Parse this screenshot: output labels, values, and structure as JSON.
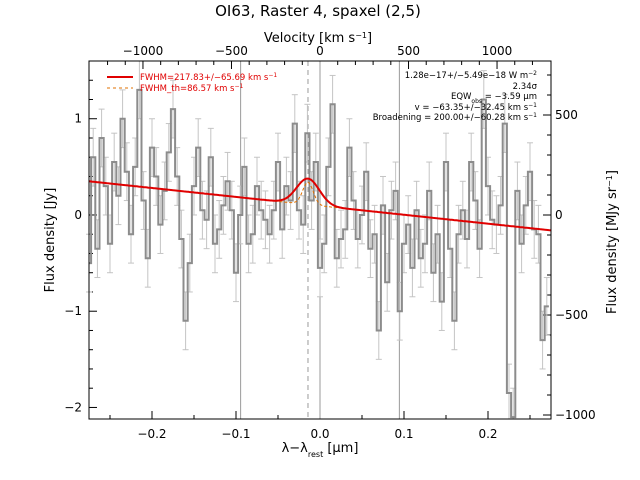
{
  "chart_data": {
    "type": "line",
    "title": "OI63, Raster 4, spaxel (2,5)",
    "xlabel_parts": {
      "main": "λ−λ",
      "sub": "rest",
      "unit": " [μm]"
    },
    "ylabel": "Flux density [Jy]",
    "top_axis": {
      "label_parts": {
        "main": "Velocity [km s",
        "sup": "−1",
        "end": "]"
      },
      "ticks": [
        "−1000",
        "−500",
        "0",
        "500",
        "1000"
      ],
      "tick_values": [
        -1000,
        -500,
        0,
        500,
        1000
      ]
    },
    "right_axis": {
      "label_parts": {
        "main": "Flux density [MJy sr",
        "sup": "−1",
        "end": "]"
      },
      "ticks": [
        "−1000",
        "−500",
        "0",
        "500"
      ],
      "tick_values": [
        -1000,
        -500,
        0,
        500
      ]
    },
    "xlim": [
      -0.275,
      0.275
    ],
    "ylim": [
      -2.12,
      1.6
    ],
    "right_ylim": [
      -1020,
      770
    ],
    "x_ticks": [
      "−0.2",
      "−0.1",
      "0.0",
      "0.1",
      "0.2"
    ],
    "x_tick_values": [
      -0.2,
      -0.1,
      0.0,
      0.1,
      0.2
    ],
    "y_ticks": [
      "−2",
      "−1",
      "0",
      "1"
    ],
    "y_tick_values": [
      -2,
      -1,
      0,
      1
    ],
    "vertical_lines": [
      -0.0945,
      0.0945
    ],
    "dashed_line": -0.0143,
    "zero_line": 0.0,
    "legend": {
      "fit": {
        "main": "FWHM=217.83+/−65.69 km s",
        "sup": "−1"
      },
      "instrument": {
        "main": "FWHM_th=86.57 km s",
        "sup": "−1"
      }
    },
    "annotations": {
      "line1": {
        "main": "1.28e−17+/−5.49e−18 W m",
        "sup": "−2"
      },
      "line2": {
        "main": "2.34σ"
      },
      "line3": {
        "main": "EQW",
        "sub": "obs",
        "end": " = −3.59 μm"
      },
      "line4": {
        "main": "v = −63.35+/−32.45 km s",
        "sup": "−1"
      },
      "line5": {
        "main": "Broadening = 200.00+/−60.28 km s",
        "sup": "−1"
      }
    },
    "colors": {
      "data": "#8c8c8c",
      "errorbar": "#c4c4c4",
      "fit": "#e00000",
      "component": "#e07000",
      "axes": "#000000"
    },
    "fit_model": {
      "continuum_start": [
        -0.275,
        0.35
      ],
      "continuum_end": [
        0.275,
        -0.16
      ],
      "gaussian_center": -0.0143,
      "gaussian_amplitude": 0.27,
      "gaussian_sigma": 0.0135,
      "component_amplitude": 0.23,
      "component_sigma": 0.0063
    },
    "error_sigma": 0.3,
    "series": [
      {
        "x": [
          -0.275,
          -0.27,
          -0.265,
          -0.26,
          -0.255,
          -0.25,
          -0.245,
          -0.24,
          -0.235,
          -0.23,
          -0.225,
          -0.22,
          -0.215,
          -0.21,
          -0.205,
          -0.2,
          -0.195,
          -0.19,
          -0.185,
          -0.18,
          -0.175,
          -0.17,
          -0.165,
          -0.16,
          -0.155,
          -0.15,
          -0.145,
          -0.14,
          -0.135,
          -0.13,
          -0.125,
          -0.12,
          -0.115,
          -0.11,
          -0.105,
          -0.1,
          -0.095,
          -0.09,
          -0.085,
          -0.08,
          -0.075,
          -0.07,
          -0.065,
          -0.06,
          -0.055,
          -0.05,
          -0.045,
          -0.04,
          -0.035,
          -0.03,
          -0.025,
          -0.02,
          -0.015,
          -0.01,
          -0.005,
          0.0,
          0.005,
          0.01,
          0.015,
          0.02,
          0.025,
          0.03,
          0.035,
          0.04,
          0.045,
          0.05,
          0.055,
          0.06,
          0.065,
          0.07,
          0.075,
          0.08,
          0.085,
          0.09,
          0.095,
          0.1,
          0.105,
          0.11,
          0.115,
          0.12,
          0.125,
          0.13,
          0.135,
          0.14,
          0.145,
          0.15,
          0.155,
          0.16,
          0.165,
          0.17,
          0.175,
          0.18,
          0.185,
          0.19,
          0.195,
          0.2,
          0.205,
          0.21,
          0.215,
          0.22,
          0.225,
          0.23,
          0.235,
          0.24,
          0.245,
          0.25,
          0.255,
          0.26,
          0.265,
          0.27
        ],
        "y": [
          -0.5,
          0.6,
          -0.35,
          0.8,
          0.3,
          -0.3,
          0.55,
          0.2,
          1.0,
          0.45,
          -0.2,
          0.5,
          1.3,
          0.15,
          -0.45,
          0.7,
          0.4,
          -0.1,
          0.25,
          0.65,
          1.1,
          0.4,
          -0.25,
          -1.1,
          -0.5,
          0.3,
          0.7,
          0.05,
          -0.05,
          0.6,
          -0.3,
          -0.15,
          0.1,
          0.35,
          0.05,
          -0.6,
          0.0,
          0.5,
          -0.3,
          -0.2,
          0.3,
          0.05,
          -0.05,
          -0.2,
          0.05,
          0.55,
          -0.15,
          0.3,
          0.15,
          0.95,
          0.05,
          -0.1,
          0.85,
          0.15,
          0.55,
          -0.55,
          -0.3,
          0.5,
          1.15,
          -0.45,
          -0.25,
          -0.15,
          0.7,
          0.15,
          -0.25,
          0.0,
          0.45,
          -0.35,
          -0.2,
          -1.2,
          0.1,
          -0.7,
          0.05,
          0.25,
          -1.0,
          -0.3,
          -0.1,
          -0.55,
          0.05,
          -0.45,
          -0.3,
          0.25,
          -0.6,
          -0.2,
          -0.9,
          0.55,
          -0.35,
          -1.1,
          -0.2,
          0.05,
          -0.25,
          0.55,
          0.15,
          -0.35,
          1.2,
          0.3,
          -0.05,
          -0.1,
          0.1,
          0.95,
          -1.85,
          -2.1,
          0.25,
          -0.3,
          0.1,
          0.45,
          -0.15,
          -0.2,
          -1.3,
          -0.95
        ]
      }
    ]
  }
}
